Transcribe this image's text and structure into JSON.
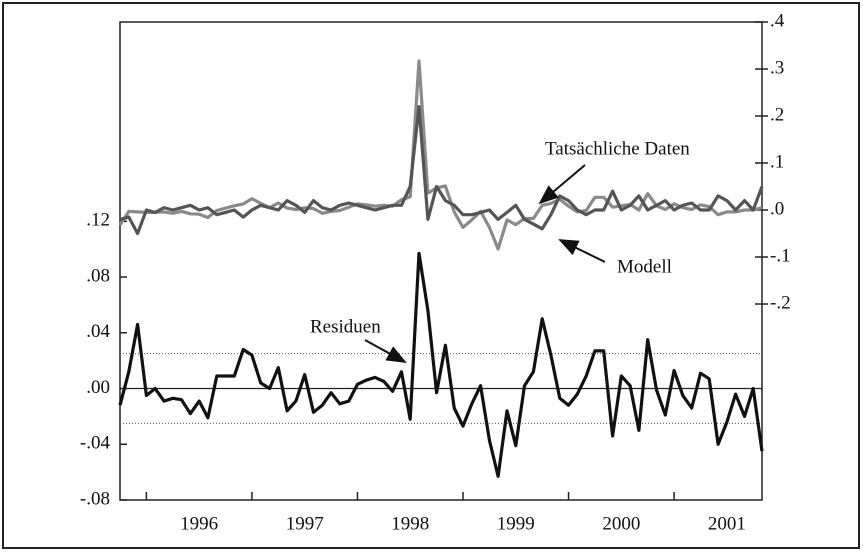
{
  "chart_data": {
    "type": "line",
    "x": [
      1995.75,
      1995.833,
      1995.917,
      1996,
      1996.083,
      1996.167,
      1996.25,
      1996.333,
      1996.417,
      1996.5,
      1996.583,
      1996.667,
      1996.75,
      1996.833,
      1996.917,
      1997,
      1997.083,
      1997.167,
      1997.25,
      1997.333,
      1997.417,
      1997.5,
      1997.583,
      1997.667,
      1997.75,
      1997.833,
      1997.917,
      1998,
      1998.083,
      1998.167,
      1998.25,
      1998.333,
      1998.417,
      1998.5,
      1998.583,
      1998.667,
      1998.75,
      1998.833,
      1998.917,
      1999,
      1999.083,
      1999.167,
      1999.25,
      1999.333,
      1999.417,
      1999.5,
      1999.583,
      1999.667,
      1999.75,
      1999.833,
      1999.917,
      2000,
      2000.083,
      2000.167,
      2000.25,
      2000.333,
      2000.417,
      2000.5,
      2000.583,
      2000.667,
      2000.75,
      2000.833,
      2000.917,
      2001,
      2001.083,
      2001.167,
      2001.25,
      2001.333,
      2001.417,
      2001.5,
      2001.583,
      2001.667,
      2001.75,
      2001.833
    ],
    "xlim": [
      1995.75,
      2001.833
    ],
    "xticks": [
      1996,
      1997,
      1998,
      1999,
      2000,
      2001
    ],
    "ylim": [
      -0.08,
      0.263
    ],
    "yticks": [
      {
        "value": -0.08,
        "label": "-.08"
      },
      {
        "value": -0.04,
        "label": "-.04"
      },
      {
        "value": 0,
        "label": ".00"
      },
      {
        "value": 0.04,
        "label": ".04"
      },
      {
        "value": 0.08,
        "label": ".08"
      },
      {
        "value": 0.12,
        "label": ".12"
      }
    ],
    "y2lim": [
      -0.617,
      0.4
    ],
    "y2ticks": [
      {
        "value": -0.2,
        "label": "-.2"
      },
      {
        "value": -0.1,
        "label": "-.1"
      },
      {
        "value": 0,
        "label": ".0"
      },
      {
        "value": 0.1,
        "label": ".1"
      },
      {
        "value": 0.2,
        "label": ".2"
      },
      {
        "value": 0.3,
        "label": ".3"
      },
      {
        "value": 0.4,
        "label": ".4"
      }
    ],
    "zero_line": true,
    "band_lines": [
      0.025,
      -0.025
    ],
    "series": [
      {
        "color": "#8a8a8a",
        "axis": "y2",
        "values": [
          -0.032,
          -0.003,
          -0.004,
          -0.005,
          -0.005,
          -0.004,
          -0.007,
          -0.003,
          -0.008,
          -0.009,
          -0.016,
          -0.001,
          0.004,
          0.009,
          0.013,
          0.024,
          0.014,
          0.005,
          0.015,
          0.004,
          0.001,
          0.005,
          0.003,
          -0.007,
          -0.003,
          -0.001,
          0.006,
          0.013,
          0.011,
          0.008,
          0.01,
          0.008,
          0.022,
          0.028,
          0.317,
          0.036,
          0.047,
          0.051,
          -0.004,
          -0.037,
          -0.021,
          -0.003,
          -0.037,
          -0.083,
          -0.021,
          -0.031,
          -0.018,
          -0.018,
          0.01,
          0.014,
          0.023,
          0.008,
          -0.004,
          -0.001,
          0.027,
          0.027,
          0.006,
          0.009,
          0.012,
          0.0,
          0.035,
          0.009,
          0.001,
          0.013,
          0.005,
          0.001,
          0.011,
          0.007,
          -0.01,
          -0.004,
          -0.004,
          0.0,
          0.0,
          0.005
        ]
      },
      {
        "color": "#555555",
        "axis": "y2",
        "values": [
          -0.02,
          -0.015,
          -0.05,
          0.0,
          -0.005,
          0.005,
          0.0,
          0.005,
          0.01,
          0.0,
          0.005,
          -0.01,
          -0.005,
          0.0,
          -0.015,
          0.0,
          0.01,
          0.005,
          0.0,
          0.02,
          0.01,
          -0.005,
          0.02,
          0.005,
          0.0,
          0.01,
          0.015,
          0.01,
          0.005,
          0.0,
          0.005,
          0.01,
          0.01,
          0.05,
          0.22,
          -0.02,
          0.05,
          0.02,
          0.01,
          -0.01,
          -0.01,
          -0.005,
          0.0,
          -0.02,
          -0.005,
          0.01,
          -0.02,
          -0.03,
          -0.04,
          -0.01,
          0.03,
          0.02,
          0.0,
          -0.01,
          0.0,
          0.0,
          0.04,
          0.0,
          0.01,
          0.03,
          0.0,
          0.01,
          0.02,
          0.0,
          0.01,
          0.015,
          0.0,
          0.0,
          0.03,
          0.02,
          0.0,
          0.02,
          0.0,
          0.05
        ]
      },
      {
        "color": "#111111",
        "axis": "y",
        "values": [
          -0.012,
          0.012,
          0.046,
          -0.005,
          0.0,
          -0.009,
          -0.007,
          -0.008,
          -0.018,
          -0.009,
          -0.021,
          0.009,
          0.009,
          0.009,
          0.028,
          0.024,
          0.004,
          0.0,
          0.015,
          -0.016,
          -0.009,
          0.01,
          -0.017,
          -0.012,
          -0.003,
          -0.011,
          -0.009,
          0.003,
          0.006,
          0.008,
          0.005,
          -0.002,
          0.012,
          -0.022,
          0.097,
          0.056,
          -0.003,
          0.031,
          -0.014,
          -0.027,
          -0.011,
          0.002,
          -0.037,
          -0.063,
          -0.016,
          -0.041,
          0.002,
          0.012,
          0.05,
          0.024,
          -0.007,
          -0.012,
          -0.004,
          0.009,
          0.027,
          0.027,
          -0.034,
          0.009,
          0.002,
          -0.03,
          0.035,
          -0.001,
          -0.019,
          0.013,
          -0.005,
          -0.014,
          0.011,
          0.007,
          -0.04,
          -0.024,
          -0.004,
          -0.02,
          0.0,
          -0.045
        ]
      }
    ],
    "annotations": [
      {
        "text": "Tatsächliche Daten"
      },
      {
        "text": "Modell"
      },
      {
        "text": "Residuen"
      }
    ]
  }
}
